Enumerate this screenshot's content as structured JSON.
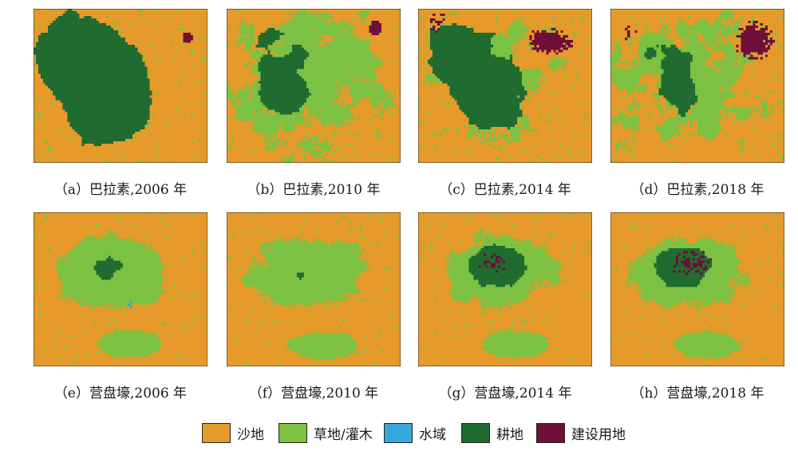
{
  "panels": [
    {
      "id": "a",
      "caption": "（a）巴拉素,2006 年",
      "site": "balasu",
      "year": 2006
    },
    {
      "id": "b",
      "caption": "（b）巴拉素,2010 年",
      "site": "balasu",
      "year": 2010
    },
    {
      "id": "c",
      "caption": "（c）巴拉素,2014 年",
      "site": "balasu",
      "year": 2014
    },
    {
      "id": "d",
      "caption": "（d）巴拉素,2018 年",
      "site": "balasu",
      "year": 2018
    },
    {
      "id": "e",
      "caption": "（e）营盘壕,2006 年",
      "site": "yingpanhao",
      "year": 2006
    },
    {
      "id": "f",
      "caption": "（f）营盘壕,2010 年",
      "site": "yingpanhao",
      "year": 2010
    },
    {
      "id": "g",
      "caption": "（g）营盘壕,2014 年",
      "site": "yingpanhao",
      "year": 2014
    },
    {
      "id": "h",
      "caption": "（h）营盘壕,2018 年",
      "site": "yingpanhao",
      "year": 2018
    }
  ],
  "legend": [
    {
      "key": "sand",
      "label": "沙地",
      "color": "#E59A29"
    },
    {
      "key": "grass",
      "label": "草地/灌木",
      "color": "#7CC142"
    },
    {
      "key": "water",
      "label": "水域",
      "color": "#34A7DC"
    },
    {
      "key": "farm",
      "label": "耕地",
      "color": "#1F6B30"
    },
    {
      "key": "built",
      "label": "建设用地",
      "color": "#6E0F3A"
    }
  ]
}
